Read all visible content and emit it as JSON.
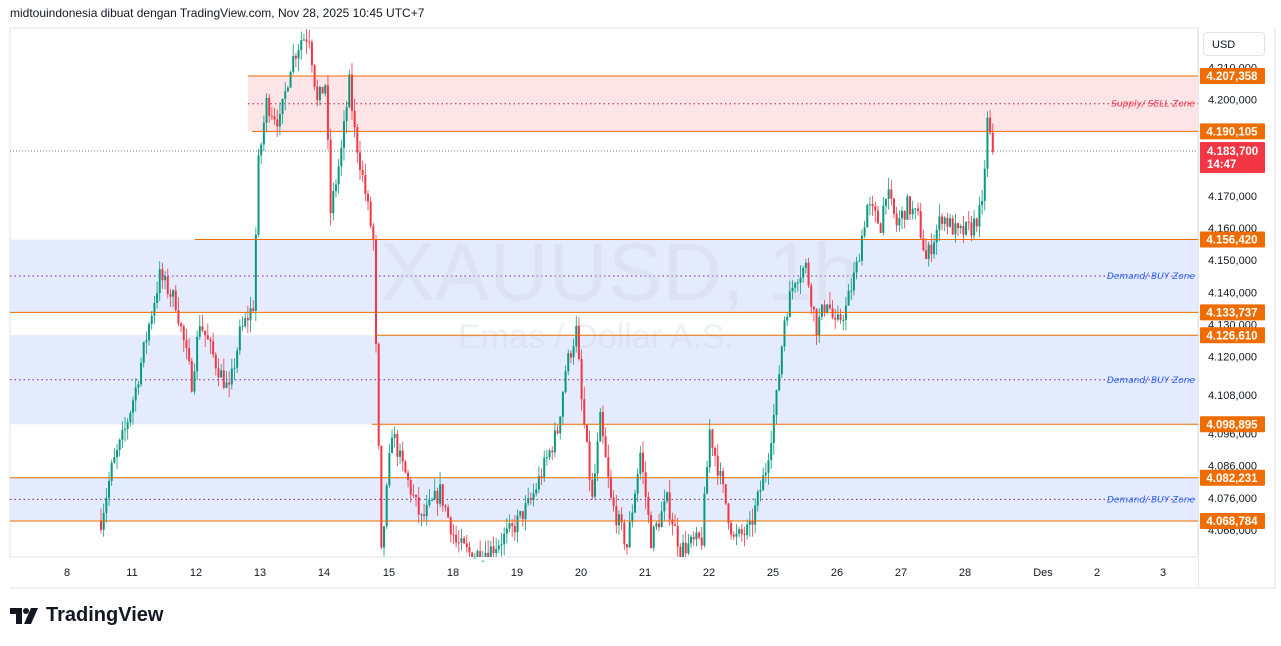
{
  "header": {
    "attribution": "midtouindonesia dibuat dengan TradingView.com, Nov 28, 2025 10:45 UTC+7"
  },
  "currency_button": "USD",
  "brand": "TradingView",
  "colors": {
    "up": "#089981",
    "down": "#f23645",
    "level_line": "#ef6c00",
    "demand_zone": "#e3ebfd",
    "supply_zone": "#fde4e7",
    "demand_text": "#2962ff",
    "supply_text": "#f23645"
  },
  "chart_data": {
    "type": "candlestick",
    "symbol_watermark": "XAUUSD, 1h",
    "description_watermark": "Emas / Dollar A.S.",
    "timeframe": "1h",
    "ylim": [
      4.058,
      4.222
    ],
    "y_ticks": [
      "4.210,000",
      "4.200,000",
      "4.170,000",
      "4.160,000",
      "4.150,000",
      "4.140,000",
      "4.130,000",
      "4.120,000",
      "4.108,000",
      "4.096,000",
      "4.086,000",
      "4.076,000",
      "4.066,000"
    ],
    "y_tick_values": [
      4.21,
      4.2,
      4.17,
      4.16,
      4.15,
      4.14,
      4.13,
      4.12,
      4.108,
      4.096,
      4.086,
      4.076,
      4.066
    ],
    "x_ticks": [
      "8",
      "11",
      "12",
      "13",
      "14",
      "15",
      "18",
      "19",
      "20",
      "21",
      "22",
      "25",
      "26",
      "27",
      "28",
      "Des",
      "2",
      "3"
    ],
    "approx_close_path": [
      [
        0,
        4.069
      ],
      [
        4,
        4.085
      ],
      [
        9,
        4.097
      ],
      [
        13,
        4.11
      ],
      [
        19,
        4.134
      ],
      [
        22,
        4.145
      ],
      [
        28,
        4.137
      ],
      [
        34,
        4.112
      ],
      [
        37,
        4.131
      ],
      [
        43,
        4.118
      ],
      [
        48,
        4.109
      ],
      [
        52,
        4.127
      ],
      [
        57,
        4.136
      ],
      [
        59,
        4.18
      ],
      [
        62,
        4.199
      ],
      [
        67,
        4.193
      ],
      [
        71,
        4.211
      ],
      [
        75,
        4.219
      ],
      [
        78,
        4.22
      ],
      [
        81,
        4.199
      ],
      [
        84,
        4.205
      ],
      [
        86,
        4.165
      ],
      [
        90,
        4.184
      ],
      [
        93,
        4.205
      ],
      [
        95,
        4.19
      ],
      [
        99,
        4.171
      ],
      [
        102,
        4.156
      ],
      [
        103,
        4.122
      ],
      [
        105,
        4.058
      ],
      [
        109,
        4.097
      ],
      [
        112,
        4.088
      ],
      [
        120,
        4.069
      ],
      [
        127,
        4.078
      ],
      [
        133,
        4.062
      ],
      [
        139,
        4.058
      ],
      [
        146,
        4.06
      ],
      [
        154,
        4.066
      ],
      [
        161,
        4.075
      ],
      [
        167,
        4.088
      ],
      [
        171,
        4.097
      ],
      [
        174,
        4.116
      ],
      [
        178,
        4.128
      ],
      [
        180,
        4.106
      ],
      [
        184,
        4.075
      ],
      [
        187,
        4.1
      ],
      [
        191,
        4.075
      ],
      [
        197,
        4.061
      ],
      [
        202,
        4.09
      ],
      [
        206,
        4.063
      ],
      [
        212,
        4.075
      ],
      [
        217,
        4.06
      ],
      [
        225,
        4.063
      ],
      [
        228,
        4.097
      ],
      [
        232,
        4.082
      ],
      [
        237,
        4.063
      ],
      [
        243,
        4.066
      ],
      [
        249,
        4.085
      ],
      [
        253,
        4.107
      ],
      [
        256,
        4.132
      ],
      [
        260,
        4.145
      ],
      [
        264,
        4.148
      ],
      [
        268,
        4.129
      ],
      [
        272,
        4.138
      ],
      [
        275,
        4.129
      ],
      [
        279,
        4.135
      ],
      [
        283,
        4.148
      ],
      [
        287,
        4.167
      ],
      [
        292,
        4.161
      ],
      [
        294,
        4.172
      ],
      [
        298,
        4.161
      ],
      [
        302,
        4.167
      ],
      [
        306,
        4.163
      ],
      [
        309,
        4.15
      ],
      [
        315,
        4.164
      ],
      [
        321,
        4.158
      ],
      [
        326,
        4.16
      ],
      [
        330,
        4.166
      ],
      [
        332,
        4.193
      ],
      [
        334,
        4.184
      ]
    ],
    "current_price": {
      "value": "4.183,700",
      "countdown": "14:47"
    },
    "levels": [
      {
        "label": "4.207,358",
        "value": 4.207358
      },
      {
        "label": "4.190,105",
        "value": 4.190105
      },
      {
        "label": "4.156,420",
        "value": 4.15642
      },
      {
        "label": "4.133,737",
        "value": 4.133737
      },
      {
        "label": "4.126,610",
        "value": 4.12661
      },
      {
        "label": "4.098,895",
        "value": 4.098895
      },
      {
        "label": "4.082,231",
        "value": 4.082231
      },
      {
        "label": "4.068,784",
        "value": 4.068784
      }
    ],
    "zones": [
      {
        "type": "supply",
        "label": "Supply/ SELL Zone",
        "top": 4.207358,
        "bottom": 4.190105
      },
      {
        "type": "demand",
        "label": "Demand/ BUY Zone",
        "top": 4.15642,
        "bottom": 4.133737
      },
      {
        "type": "demand",
        "label": "Demand/ BUY Zone",
        "top": 4.12661,
        "bottom": 4.098895
      },
      {
        "type": "demand",
        "label": "Demand/ BUY Zone",
        "top": 4.082231,
        "bottom": 4.068784
      }
    ]
  }
}
